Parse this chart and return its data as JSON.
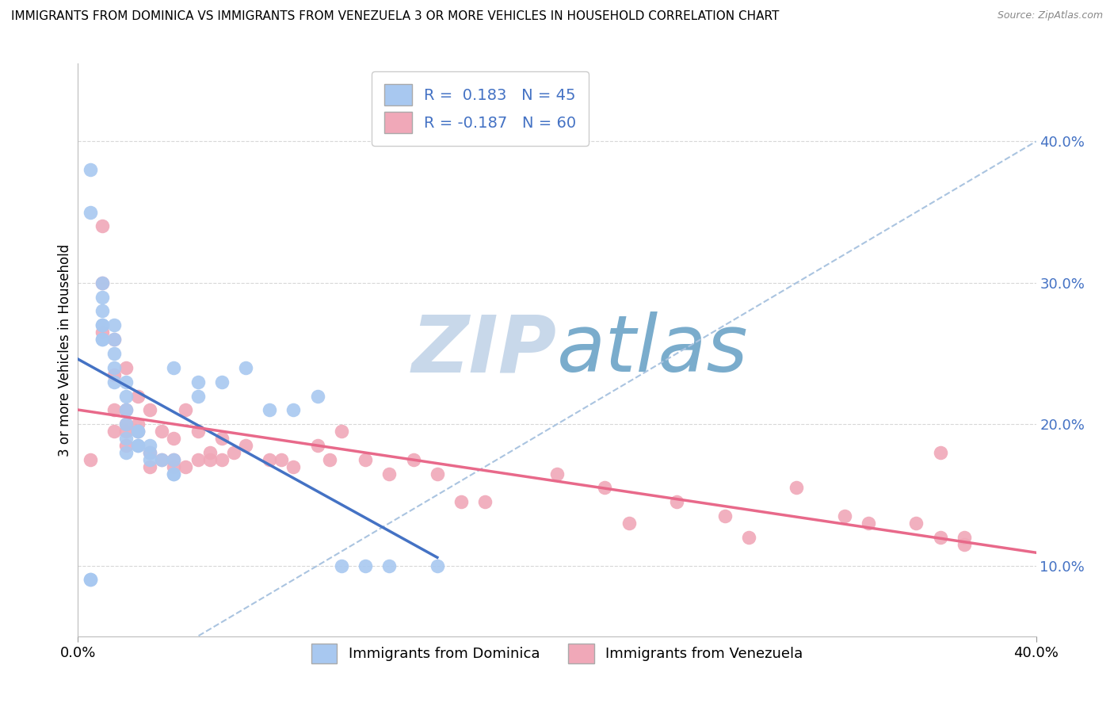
{
  "title": "IMMIGRANTS FROM DOMINICA VS IMMIGRANTS FROM VENEZUELA 3 OR MORE VEHICLES IN HOUSEHOLD CORRELATION CHART",
  "source": "Source: ZipAtlas.com",
  "ylabel": "3 or more Vehicles in Household",
  "ytick_values": [
    0.1,
    0.2,
    0.3,
    0.4
  ],
  "ytick_labels": [
    "10.0%",
    "20.0%",
    "30.0%",
    "40.0%"
  ],
  "xlim": [
    0.0,
    0.4
  ],
  "ylim": [
    0.05,
    0.455
  ],
  "dominica_R": 0.183,
  "dominica_N": 45,
  "venezuela_R": -0.187,
  "venezuela_N": 60,
  "dominica_color": "#a8c8f0",
  "venezuela_color": "#f0a8b8",
  "dominica_line_color": "#4472c4",
  "venezuela_line_color": "#e8698a",
  "ref_line_color": "#aac4e0",
  "legend_text_color": "#4472c4",
  "watermark_zip": "ZIP",
  "watermark_atlas": "atlas",
  "watermark_color_zip": "#c8d8ea",
  "watermark_color_atlas": "#7aaccc",
  "background_color": "#ffffff",
  "grid_color": "#d8d8d8",
  "dominica_x": [
    0.005,
    0.005,
    0.01,
    0.01,
    0.01,
    0.01,
    0.01,
    0.01,
    0.01,
    0.015,
    0.015,
    0.015,
    0.015,
    0.015,
    0.02,
    0.02,
    0.02,
    0.02,
    0.02,
    0.02,
    0.025,
    0.025,
    0.025,
    0.025,
    0.03,
    0.03,
    0.03,
    0.035,
    0.04,
    0.04,
    0.04,
    0.04,
    0.05,
    0.05,
    0.06,
    0.07,
    0.08,
    0.09,
    0.1,
    0.11,
    0.12,
    0.13,
    0.15,
    0.005,
    0.005
  ],
  "dominica_y": [
    0.38,
    0.35,
    0.3,
    0.29,
    0.28,
    0.27,
    0.26,
    0.27,
    0.26,
    0.27,
    0.26,
    0.25,
    0.24,
    0.23,
    0.23,
    0.22,
    0.21,
    0.2,
    0.19,
    0.18,
    0.195,
    0.195,
    0.185,
    0.185,
    0.185,
    0.18,
    0.175,
    0.175,
    0.175,
    0.165,
    0.165,
    0.24,
    0.23,
    0.22,
    0.23,
    0.24,
    0.21,
    0.21,
    0.22,
    0.1,
    0.1,
    0.1,
    0.1,
    0.09,
    0.09
  ],
  "venezuela_x": [
    0.005,
    0.01,
    0.01,
    0.01,
    0.015,
    0.015,
    0.015,
    0.015,
    0.02,
    0.02,
    0.02,
    0.02,
    0.02,
    0.025,
    0.025,
    0.025,
    0.03,
    0.03,
    0.03,
    0.035,
    0.035,
    0.04,
    0.04,
    0.04,
    0.045,
    0.045,
    0.05,
    0.05,
    0.055,
    0.055,
    0.06,
    0.06,
    0.065,
    0.07,
    0.08,
    0.085,
    0.09,
    0.1,
    0.105,
    0.11,
    0.12,
    0.13,
    0.14,
    0.15,
    0.16,
    0.17,
    0.2,
    0.22,
    0.23,
    0.25,
    0.27,
    0.28,
    0.3,
    0.32,
    0.33,
    0.35,
    0.36,
    0.37,
    0.36,
    0.37
  ],
  "venezuela_y": [
    0.175,
    0.34,
    0.3,
    0.265,
    0.26,
    0.235,
    0.21,
    0.195,
    0.24,
    0.21,
    0.2,
    0.195,
    0.185,
    0.22,
    0.2,
    0.195,
    0.21,
    0.18,
    0.17,
    0.195,
    0.175,
    0.19,
    0.175,
    0.17,
    0.21,
    0.17,
    0.195,
    0.175,
    0.18,
    0.175,
    0.19,
    0.175,
    0.18,
    0.185,
    0.175,
    0.175,
    0.17,
    0.185,
    0.175,
    0.195,
    0.175,
    0.165,
    0.175,
    0.165,
    0.145,
    0.145,
    0.165,
    0.155,
    0.13,
    0.145,
    0.135,
    0.12,
    0.155,
    0.135,
    0.13,
    0.13,
    0.12,
    0.12,
    0.18,
    0.115
  ]
}
